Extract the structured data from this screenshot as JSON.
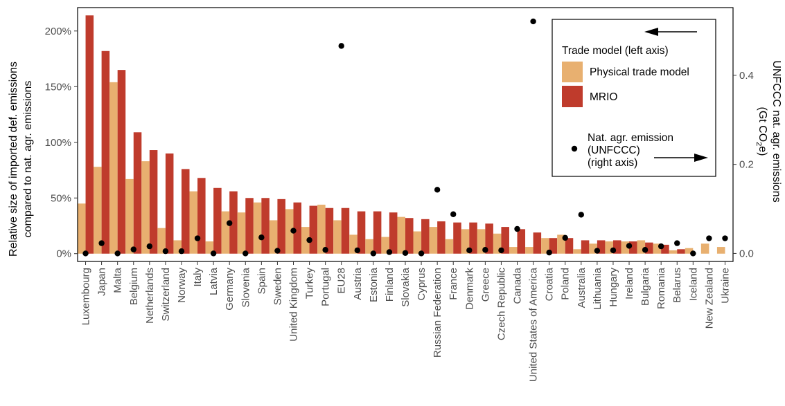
{
  "chart_data": {
    "type": "bar",
    "categories": [
      "Luxembourg",
      "Japan",
      "Malta",
      "Belgium",
      "Netherlands",
      "Switzerland",
      "Norway",
      "Italy",
      "Latvia",
      "Germany",
      "Slovenia",
      "Spain",
      "Sweden",
      "United Kingdom",
      "Turkey",
      "Portugal",
      "EU28",
      "Austria",
      "Estonia",
      "Finland",
      "Slovakia",
      "Cyprus",
      "Russian Federation",
      "France",
      "Denmark",
      "Greece",
      "Czech Republic",
      "Canada",
      "United States of America",
      "Croatia",
      "Poland",
      "Australia",
      "Lithuania",
      "Hungary",
      "Ireland",
      "Bulgaria",
      "Romania",
      "Belarus",
      "Iceland",
      "New Zealand",
      "Ukraine"
    ],
    "series": [
      {
        "name": "Physical trade model",
        "color": "#e8b070",
        "axis": "left",
        "values": [
          0.45,
          0.78,
          1.54,
          0.67,
          0.83,
          0.23,
          0.12,
          0.56,
          0.11,
          0.38,
          0.37,
          0.46,
          0.3,
          0.4,
          0.24,
          0.44,
          0.3,
          0.17,
          0.13,
          0.15,
          0.33,
          0.2,
          0.24,
          0.13,
          0.22,
          0.22,
          0.18,
          0.06,
          0.06,
          0.14,
          0.17,
          0.04,
          0.09,
          0.11,
          0.11,
          0.12,
          0.09,
          0.03,
          0.05,
          0.09,
          0.06
        ]
      },
      {
        "name": "MRIO",
        "color": "#bf3b2c",
        "axis": "left",
        "values": [
          2.14,
          1.82,
          1.65,
          1.09,
          0.93,
          0.9,
          0.76,
          0.68,
          0.59,
          0.56,
          0.5,
          0.5,
          0.49,
          0.46,
          0.43,
          0.41,
          0.41,
          0.38,
          0.38,
          0.37,
          0.32,
          0.31,
          0.29,
          0.28,
          0.28,
          0.27,
          0.24,
          0.22,
          0.19,
          0.14,
          0.14,
          0.12,
          0.12,
          0.12,
          0.11,
          0.1,
          0.08,
          0.04,
          0.0,
          0.0,
          0.0
        ]
      },
      {
        "name": "Nat. agr. emission (UNFCCC)",
        "color": "#000000",
        "axis": "right",
        "marker": "point",
        "values": [
          0.0,
          0.023,
          0.0,
          0.009,
          0.016,
          0.005,
          0.005,
          0.034,
          0.0,
          0.068,
          0.0,
          0.036,
          0.006,
          0.051,
          0.03,
          0.008,
          0.466,
          0.007,
          0.0,
          0.003,
          0.001,
          0.0,
          0.143,
          0.088,
          0.007,
          0.008,
          0.007,
          0.055,
          0.521,
          0.002,
          0.035,
          0.087,
          0.006,
          0.007,
          0.017,
          0.008,
          0.016,
          0.023,
          0.0,
          0.034,
          0.034
        ]
      }
    ],
    "ylabel_left_line1": "Relative size of imported def. emissions",
    "ylabel_left_line2": "compared to nat. agr. emissions",
    "ylabel_right_line1": "UNFCCC nat. agr. emissions",
    "ylabel_right_line2": "(Gt CO",
    "ylabel_right_sub": "2",
    "ylabel_right_end": "e)",
    "left_ticks": [
      {
        "v": 0,
        "label": "0%"
      },
      {
        "v": 0.5,
        "label": "50%"
      },
      {
        "v": 1.0,
        "label": "100%"
      },
      {
        "v": 1.5,
        "label": "150%"
      },
      {
        "v": 2.0,
        "label": "200%"
      }
    ],
    "right_ticks": [
      {
        "v": 0,
        "label": "0.0"
      },
      {
        "v": 0.2,
        "label": "0.2"
      },
      {
        "v": 0.4,
        "label": "0.4"
      }
    ],
    "ylim_left": [
      -0.07,
      2.21
    ],
    "ylim_right": [
      -0.018,
      0.552
    ],
    "legend": {
      "title": "Trade model (left axis)",
      "item1": "Physical trade model",
      "item2": "MRIO",
      "point_line1": "Nat. agr. emission",
      "point_line2": "(UNFCCC)",
      "point_line3": "(right axis)",
      "placement": "top-right"
    }
  }
}
